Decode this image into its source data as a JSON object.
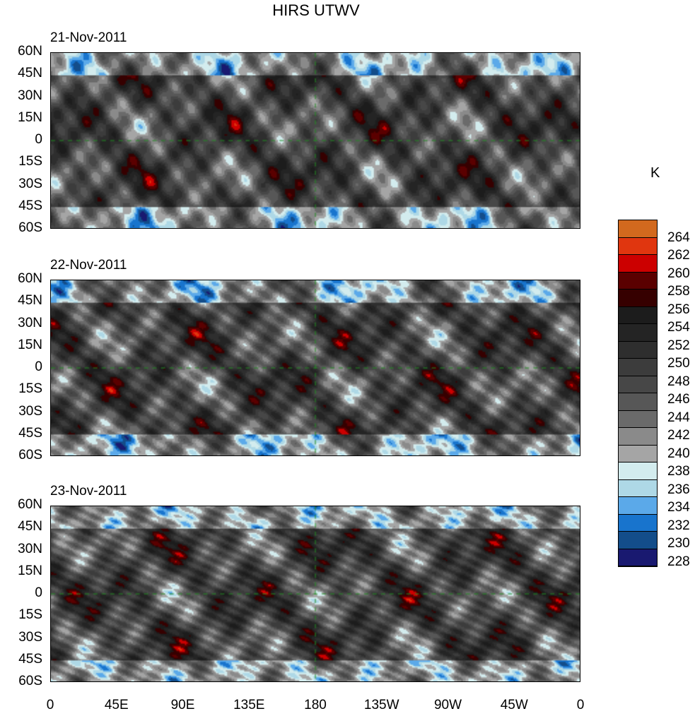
{
  "title": "HIRS UTWV",
  "units": "K",
  "chart_data": {
    "type": "heatmap",
    "title": "HIRS UTWV",
    "panels": [
      {
        "date": "21-Nov-2011",
        "seed": 1
      },
      {
        "date": "22-Nov-2011",
        "seed": 2
      },
      {
        "date": "23-Nov-2011",
        "seed": 3
      }
    ],
    "x_ticks": [
      "0",
      "45E",
      "90E",
      "135E",
      "180",
      "135W",
      "90W",
      "45W",
      "0"
    ],
    "y_ticks": [
      "60N",
      "45N",
      "30N",
      "15N",
      "0",
      "15S",
      "30S",
      "45S",
      "60S"
    ],
    "xlim": [
      0,
      360
    ],
    "ylim": [
      -60,
      60
    ],
    "colorbar": {
      "label": "K",
      "levels": [
        "264",
        "262",
        "260",
        "258",
        "256",
        "254",
        "252",
        "250",
        "248",
        "246",
        "244",
        "242",
        "240",
        "238",
        "236",
        "234",
        "232",
        "230",
        "228"
      ],
      "colors": [
        "#D2691E",
        "#E0360F",
        "#CC0000",
        "#5A0000",
        "#360000",
        "#1C1C1C",
        "#242424",
        "#2E2E2E",
        "#3C3C3C",
        "#474747",
        "#575757",
        "#6A6A6A",
        "#8A8A8A",
        "#A5A5A5",
        "#D3ECEE",
        "#AED8E6",
        "#5BA9E9",
        "#1874CD",
        "#134D8A",
        "#191970"
      ]
    },
    "coastline_color": "#228B22"
  }
}
